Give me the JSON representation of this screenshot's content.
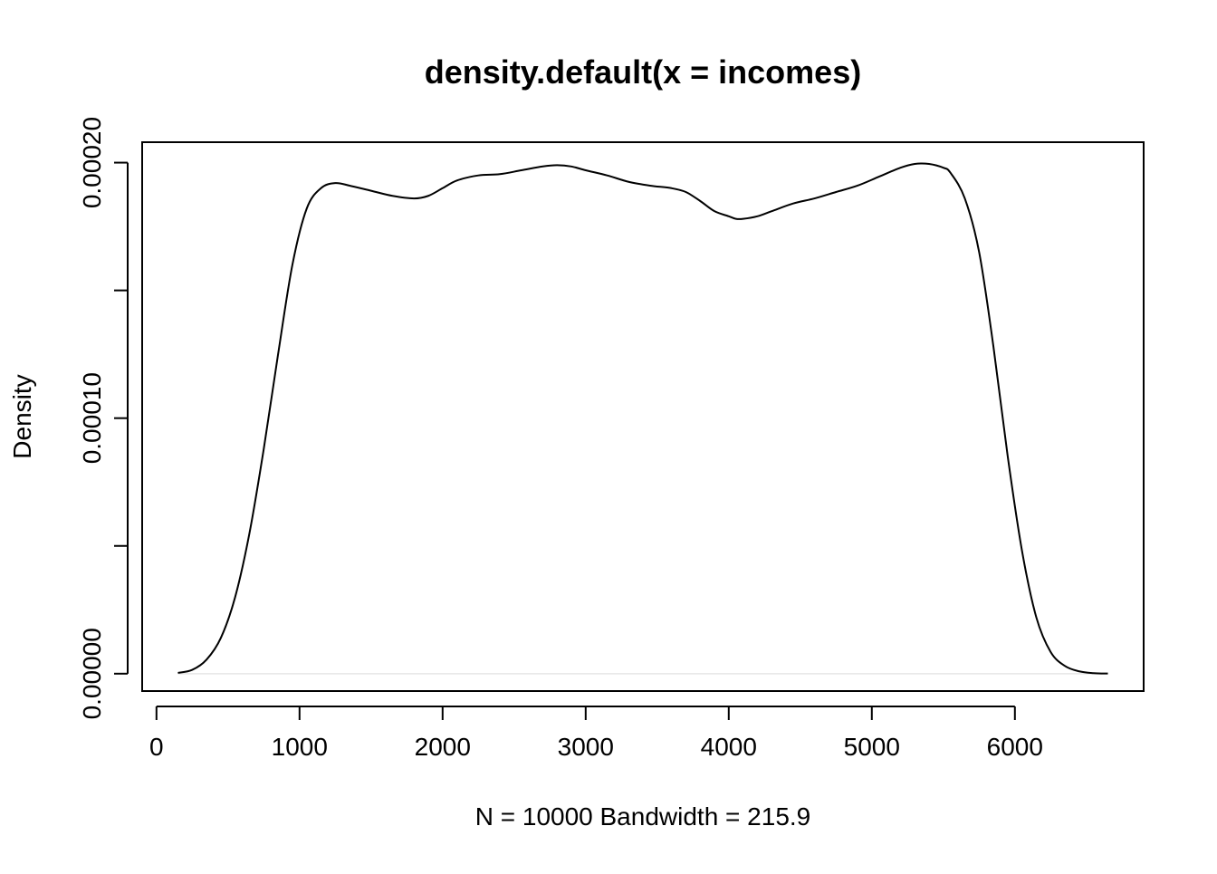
{
  "chart_data": {
    "type": "line",
    "title": "density.default(x = incomes)",
    "xlabel": "N = 10000   Bandwidth = 215.9",
    "ylabel": "Density",
    "xlim": [
      -100,
      6900
    ],
    "ylim": [
      -6.8e-06,
      0.000208
    ],
    "x_ticks": [
      0,
      1000,
      2000,
      3000,
      4000,
      5000,
      6000
    ],
    "x_tick_labels": [
      "0",
      "1000",
      "2000",
      "3000",
      "4000",
      "5000",
      "6000"
    ],
    "y_ticks": [
      0,
      5e-05,
      0.0001,
      0.00015,
      0.0002
    ],
    "y_tick_labels": [
      "0.00000",
      "",
      "0.00010",
      "",
      "0.00020"
    ],
    "baseline": 0,
    "grid": false,
    "legend": "none",
    "line_color": "#000000",
    "baseline_color": "#e6e6e6",
    "series": [
      {
        "x": [
          150,
          250,
          350,
          450,
          550,
          650,
          750,
          850,
          950,
          1050,
          1150,
          1250,
          1350,
          1500,
          1650,
          1800,
          1900,
          2000,
          2100,
          2250,
          2400,
          2550,
          2700,
          2800,
          2900,
          3000,
          3150,
          3300,
          3450,
          3600,
          3700,
          3800,
          3900,
          4000,
          4050,
          4100,
          4200,
          4300,
          4450,
          4600,
          4750,
          4900,
          5050,
          5200,
          5300,
          5400,
          5500,
          5550,
          5650,
          5750,
          5850,
          5950,
          6050,
          6150,
          6250,
          6350,
          6450,
          6550,
          6650
        ],
        "y": [
          3e-07,
          1.5e-06,
          5.5e-06,
          1.4e-05,
          3e-05,
          5.5e-05,
          8.8e-05,
          0.000125,
          0.00016,
          0.000182,
          0.00019,
          0.000192,
          0.000191,
          0.000189,
          0.000187,
          0.000186,
          0.000187,
          0.00019,
          0.000193,
          0.000195,
          0.0001955,
          0.000197,
          0.0001985,
          0.000199,
          0.0001985,
          0.000197,
          0.000195,
          0.0001925,
          0.000191,
          0.00019,
          0.0001885,
          0.000185,
          0.000181,
          0.000179,
          0.000178,
          0.000178,
          0.000179,
          0.000181,
          0.000184,
          0.000186,
          0.0001885,
          0.000191,
          0.0001945,
          0.000198,
          0.0001995,
          0.0001995,
          0.000198,
          0.000196,
          0.000186,
          0.000165,
          0.000128,
          8.5e-05,
          4.8e-05,
          2.2e-05,
          8.5e-06,
          3e-06,
          9e-07,
          2e-07,
          5e-08
        ]
      }
    ]
  }
}
